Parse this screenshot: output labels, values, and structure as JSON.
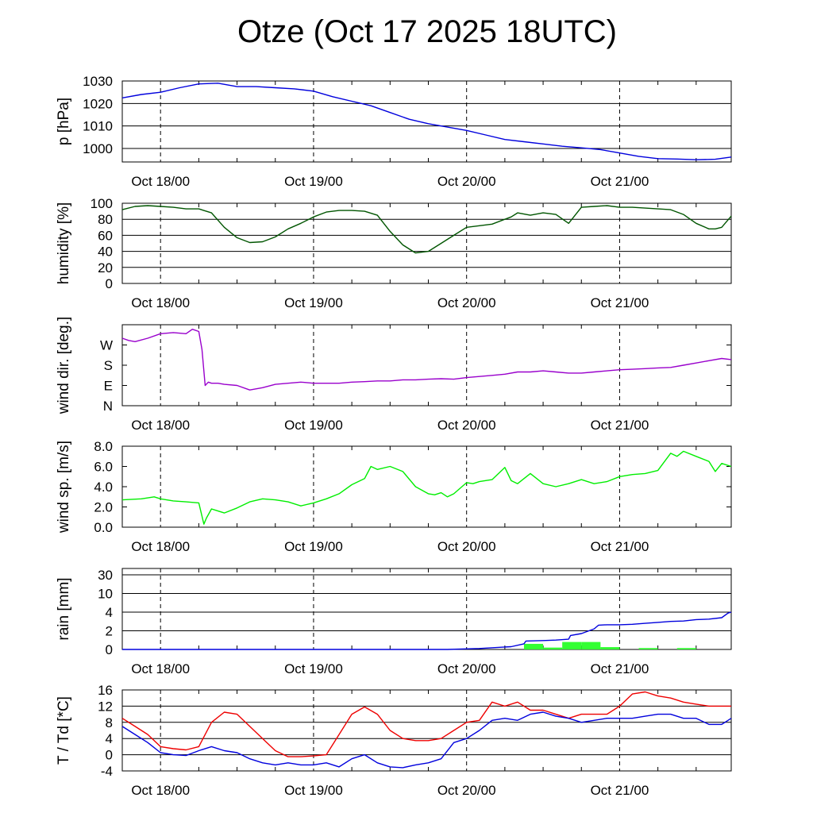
{
  "title": "Otze (Oct 17 2025 18UTC)",
  "chart_data": [
    {
      "type": "line",
      "ylabel": "p [hPa]",
      "x_tick_labels": [
        "Oct 18/00",
        "Oct 19/00",
        "Oct 20/00",
        "Oct 21/00"
      ],
      "y_ticks": [
        1000,
        1010,
        1020,
        1030
      ],
      "ylim": [
        994,
        1030
      ],
      "grid": true,
      "series": [
        {
          "color": "#0000dd",
          "x": [
            -6,
            -3,
            0,
            3,
            6,
            9,
            12,
            15,
            18,
            21,
            24,
            27,
            30,
            33,
            36,
            39,
            42,
            45,
            48,
            51,
            54,
            57,
            60,
            63,
            66,
            69,
            72,
            75,
            78,
            81,
            84,
            87,
            89.5
          ],
          "values": [
            1022.5,
            1024,
            1025,
            1027,
            1028.7,
            1029,
            1027.5,
            1027.5,
            1027,
            1026.5,
            1025.5,
            1023,
            1021,
            1019,
            1016,
            1013,
            1011,
            1009.5,
            1008,
            1006,
            1004,
            1003,
            1002,
            1001,
            1000.3,
            999.5,
            998,
            996.5,
            995.5,
            995.3,
            995,
            995.2,
            996.2
          ]
        }
      ]
    },
    {
      "type": "line",
      "ylabel": "humidity [%]",
      "x_tick_labels": [
        "Oct 18/00",
        "Oct 19/00",
        "Oct 20/00",
        "Oct 21/00"
      ],
      "y_ticks": [
        0,
        20,
        40,
        60,
        80,
        100
      ],
      "ylim": [
        0,
        100
      ],
      "grid": true,
      "series": [
        {
          "color": "#005500",
          "x": [
            -6,
            -4,
            -2,
            0,
            2,
            4,
            6,
            8,
            10,
            12,
            14,
            16,
            18,
            20,
            22,
            24,
            26,
            28,
            30,
            32,
            34,
            36,
            38,
            40,
            42,
            44,
            46,
            48,
            50,
            52,
            54,
            55,
            56,
            58,
            60,
            62,
            64,
            66,
            68,
            70,
            72,
            74,
            76,
            78,
            80,
            82,
            84,
            86,
            87,
            88,
            89.5
          ],
          "values": [
            92,
            96,
            97,
            96,
            95,
            93,
            93,
            88,
            70,
            57,
            51,
            52,
            58,
            68,
            75,
            83,
            89,
            91,
            91,
            90,
            85,
            65,
            48,
            38,
            40,
            50,
            60,
            70,
            72,
            74,
            80,
            83,
            88,
            85,
            88,
            86,
            75,
            95,
            96,
            97,
            95,
            95,
            94,
            93,
            92,
            86,
            75,
            68,
            68,
            70,
            84
          ]
        }
      ]
    },
    {
      "type": "line",
      "ylabel": "wind dir. [deg.]",
      "x_tick_labels": [
        "Oct 18/00",
        "Oct 19/00",
        "Oct 20/00",
        "Oct 21/00"
      ],
      "y_tick_labels": [
        "N",
        "E",
        "S",
        "W"
      ],
      "y_ticks": [
        0,
        90,
        180,
        270
      ],
      "ylim": [
        0,
        360
      ],
      "grid": false,
      "series": [
        {
          "color": "#9900cc",
          "x": [
            -6,
            -5,
            -4,
            -2,
            0,
            2,
            4,
            5,
            6,
            6.5,
            7,
            7.5,
            8,
            9,
            10,
            12,
            14,
            16,
            18,
            20,
            22,
            24,
            26,
            28,
            30,
            32,
            34,
            36,
            38,
            40,
            42,
            44,
            46,
            48,
            50,
            52,
            54,
            56,
            58,
            60,
            62,
            64,
            66,
            68,
            70,
            72,
            74,
            76,
            78,
            80,
            82,
            84,
            86,
            88,
            89.5
          ],
          "values": [
            300,
            290,
            285,
            300,
            320,
            325,
            320,
            340,
            330,
            250,
            90,
            105,
            100,
            100,
            95,
            90,
            70,
            80,
            95,
            100,
            105,
            100,
            100,
            100,
            105,
            107,
            110,
            110,
            115,
            115,
            118,
            120,
            118,
            125,
            130,
            135,
            140,
            150,
            150,
            155,
            150,
            145,
            145,
            150,
            155,
            160,
            162,
            165,
            168,
            170,
            180,
            190,
            200,
            210,
            205
          ]
        }
      ]
    },
    {
      "type": "line",
      "ylabel": "wind sp. [m/s]",
      "x_tick_labels": [
        "Oct 18/00",
        "Oct 19/00",
        "Oct 20/00",
        "Oct 21/00"
      ],
      "y_ticks": [
        0.0,
        2.0,
        4.0,
        6.0,
        8.0
      ],
      "y_tick_labels": [
        "0.0",
        "2.0",
        "4.0",
        "6.0",
        "8.0"
      ],
      "ylim": [
        0,
        8
      ],
      "grid": false,
      "series": [
        {
          "color": "#00ee00",
          "x": [
            -6,
            -3,
            -1,
            0,
            2,
            4,
            6,
            6.8,
            7.2,
            8,
            9,
            10,
            12,
            14,
            16,
            18,
            20,
            22,
            24,
            26,
            28,
            30,
            32,
            33,
            34,
            36,
            38,
            40,
            42,
            43,
            44,
            45,
            46,
            48,
            49,
            50,
            52,
            54,
            55,
            56,
            58,
            60,
            62,
            64,
            66,
            68,
            70,
            72,
            74,
            76,
            78,
            80,
            81,
            82,
            84,
            86,
            87,
            88,
            89.5
          ],
          "values": [
            2.7,
            2.8,
            3.0,
            2.8,
            2.6,
            2.5,
            2.4,
            0.3,
            0.9,
            1.8,
            1.6,
            1.4,
            1.9,
            2.5,
            2.8,
            2.7,
            2.5,
            2.1,
            2.4,
            2.8,
            3.3,
            4.2,
            4.8,
            6.0,
            5.7,
            6.0,
            5.5,
            4.0,
            3.3,
            3.2,
            3.4,
            3.0,
            3.3,
            4.4,
            4.3,
            4.5,
            4.7,
            5.9,
            4.6,
            4.3,
            5.3,
            4.3,
            4.0,
            4.3,
            4.7,
            4.3,
            4.5,
            5.0,
            5.2,
            5.3,
            5.6,
            7.3,
            7.0,
            7.5,
            7.0,
            6.5,
            5.5,
            6.3,
            6.0
          ]
        }
      ]
    },
    {
      "type": "bar",
      "ylabel": "rain [mm]",
      "x_tick_labels": [
        "Oct 18/00",
        "Oct 19/00",
        "Oct 20/00",
        "Oct 21/00"
      ],
      "y_ticks": [
        0,
        2,
        4,
        10,
        30
      ],
      "y_axis_note": "nonlinear rain scale",
      "grid": true,
      "bars": {
        "color": "#33ff33",
        "x": [
          57,
          60,
          63,
          66,
          69,
          75,
          81
        ],
        "values": [
          0.6,
          0.2,
          0.8,
          0.8,
          0.25,
          0.15,
          0.15
        ]
      },
      "series": [
        {
          "color": "#0000dd",
          "name_hint": "accumulated",
          "x": [
            -6,
            45,
            50,
            55,
            57,
            57.3,
            60,
            62,
            64,
            64.3,
            66,
            68,
            68.7,
            70,
            72,
            74,
            76,
            78,
            80,
            82,
            84,
            86,
            88,
            89,
            89.5
          ],
          "values": [
            0,
            0,
            0.1,
            0.3,
            0.6,
            0.9,
            0.95,
            1.0,
            1.1,
            1.5,
            1.7,
            2.2,
            2.6,
            2.65,
            2.65,
            2.7,
            2.8,
            2.9,
            3.0,
            3.05,
            3.2,
            3.25,
            3.4,
            3.9,
            4.0
          ]
        }
      ]
    },
    {
      "type": "line",
      "ylabel": "T / Td [*C]",
      "x_tick_labels": [
        "Oct 18/00",
        "Oct 19/00",
        "Oct 20/00",
        "Oct 21/00"
      ],
      "y_ticks": [
        -4,
        0,
        4,
        8,
        12,
        16
      ],
      "ylim": [
        -4,
        16
      ],
      "grid": true,
      "series": [
        {
          "color": "#ee0000",
          "x": [
            -6,
            -4,
            -2,
            0,
            2,
            4,
            6,
            8,
            10,
            12,
            14,
            16,
            18,
            20,
            22,
            24,
            26,
            28,
            30,
            32,
            34,
            36,
            38,
            40,
            42,
            44,
            46,
            48,
            50,
            52,
            54,
            56,
            58,
            60,
            62,
            64,
            66,
            68,
            70,
            72,
            74,
            76,
            78,
            80,
            82,
            84,
            86,
            88,
            89,
            89.5
          ],
          "values": [
            9,
            7,
            5,
            2,
            1.5,
            1.2,
            2,
            8,
            10.5,
            10,
            7,
            4,
            1,
            -0.5,
            -0.5,
            -0.3,
            0,
            5,
            10,
            11.8,
            10,
            6,
            4,
            3.5,
            3.5,
            4,
            6,
            8,
            8.5,
            13,
            12,
            13,
            11,
            11,
            10,
            9,
            10,
            10,
            10,
            12,
            15,
            15.5,
            14.5,
            14,
            13,
            12.5,
            12,
            12,
            12,
            12
          ]
        },
        {
          "color": "#0000dd",
          "x": [
            -6,
            -4,
            -2,
            0,
            2,
            4,
            6,
            8,
            10,
            12,
            14,
            16,
            18,
            20,
            22,
            24,
            26,
            28,
            30,
            32,
            34,
            36,
            38,
            40,
            42,
            44,
            46,
            48,
            50,
            52,
            54,
            56,
            58,
            60,
            62,
            64,
            66,
            68,
            70,
            72,
            74,
            76,
            78,
            80,
            82,
            84,
            86,
            88,
            89,
            89.5
          ],
          "values": [
            7,
            5,
            3,
            0.5,
            0,
            -0.2,
            1,
            2,
            1,
            0.5,
            -1,
            -2,
            -2.5,
            -2,
            -2.5,
            -2.5,
            -2,
            -3,
            -1,
            0,
            -2,
            -3,
            -3.2,
            -2.5,
            -2,
            -1,
            3,
            4,
            6,
            8.5,
            9,
            8.5,
            10,
            10.5,
            9.5,
            9,
            8,
            8.5,
            9,
            9,
            9,
            9.5,
            10,
            10,
            9,
            9,
            7.5,
            7.5,
            8.5,
            9
          ]
        }
      ]
    }
  ]
}
